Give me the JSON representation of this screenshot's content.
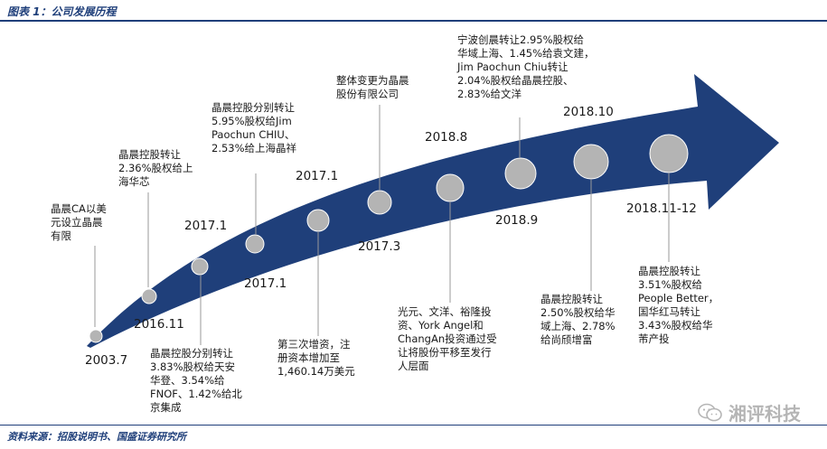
{
  "header": {
    "title": "图表 1：公司发展历程"
  },
  "footer": {
    "source": "资料来源：招股说明书、国盛证券研究所"
  },
  "watermark": {
    "text": "湘评科技",
    "icon": "wechat-icon"
  },
  "colors": {
    "arrow": "#1f3f7a",
    "milestone": "#b4b4b4",
    "leader": "#999999"
  },
  "timeline": {
    "dates": {
      "d2003_7": "2003.7",
      "d2016_11": "2016.11",
      "d2017_1a": "2017.1",
      "d2017_1b": "2017.1",
      "d2017_1c": "2017.1",
      "d2017_3": "2017.3",
      "d2018_8": "2018.8",
      "d2018_9": "2018.9",
      "d2018_10": "2018.10",
      "d2018_11_12": "2018.11-12"
    },
    "notes": {
      "n2003": [
        "晶晨CA以美",
        "元设立晶晨",
        "有限"
      ],
      "n2016": [
        "晶晨控股转让",
        "2.36%股权给上",
        "海华芯"
      ],
      "n2017a": [
        "晶晨控股分别转让",
        "3.83%股权给天安",
        "华登、3.54%给",
        "FNOF、1.42%给北",
        "京集成"
      ],
      "n2017b": [
        "晶晨控股分别转让",
        "5.95%股权给Jim",
        "Paochun CHIU、",
        "2.53%给上海晶祥"
      ],
      "n2017c": [
        "第三次增资，注",
        "册资本增加至",
        "1,460.14万美元"
      ],
      "n2017d": [
        "整体变更为晶晨",
        "股份有限公司"
      ],
      "n2018a": [
        "光元、文洋、裕隆投",
        "资、York Angel和",
        "ChangAn投资通过受",
        "让将股份平移至发行",
        "人层面"
      ],
      "n2018b": [
        "宁波创晨转让2.95%股权给",
        "华域上海、1.45%给袁文建，",
        "Jim Paochun Chiu转让",
        "2.04%股权给晶晨控股、",
        "2.83%给文洋"
      ],
      "n2018c": [
        "晶晨控股转让",
        "2.50%股权给华",
        "域上海、2.78%",
        "给尚颀增富"
      ],
      "n2018d": [
        "晶晨控股转让",
        "3.51%股权给",
        "People Better，",
        "国华红马转让",
        "3.43%股权给华",
        "芾产投"
      ]
    }
  }
}
